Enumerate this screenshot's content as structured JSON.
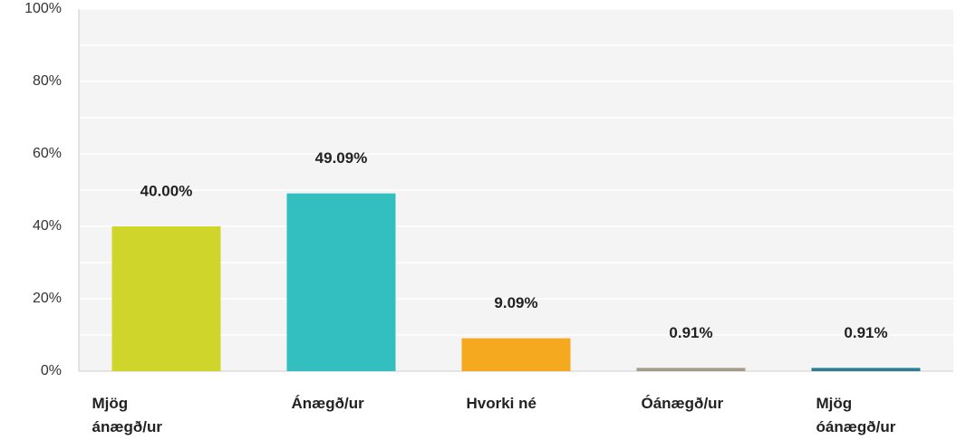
{
  "chart_data": {
    "type": "bar",
    "categories": [
      "Mjög ánægð/ur",
      "Ánægð/ur",
      "Hvorki né",
      "Óánægð/ur",
      "Mjög óánægð/ur"
    ],
    "values": [
      40.0,
      49.09,
      9.09,
      0.91,
      0.91
    ],
    "value_labels": [
      "40.00%",
      "49.09%",
      "9.09%",
      "0.91%",
      "0.91%"
    ],
    "colors": [
      "#cfd52a",
      "#33bec0",
      "#f5a91f",
      "#a39c8b",
      "#2f7d92"
    ],
    "ylim": [
      0,
      100
    ],
    "yticks": [
      {
        "value": 0,
        "label": "0%"
      },
      {
        "value": 20,
        "label": "20%"
      },
      {
        "value": 40,
        "label": "40%"
      },
      {
        "value": 60,
        "label": "60%"
      },
      {
        "value": 80,
        "label": "80%"
      },
      {
        "value": 100,
        "label": "100%"
      }
    ],
    "minor_yticks": [
      10,
      30,
      50,
      70,
      90
    ],
    "grid": true
  }
}
